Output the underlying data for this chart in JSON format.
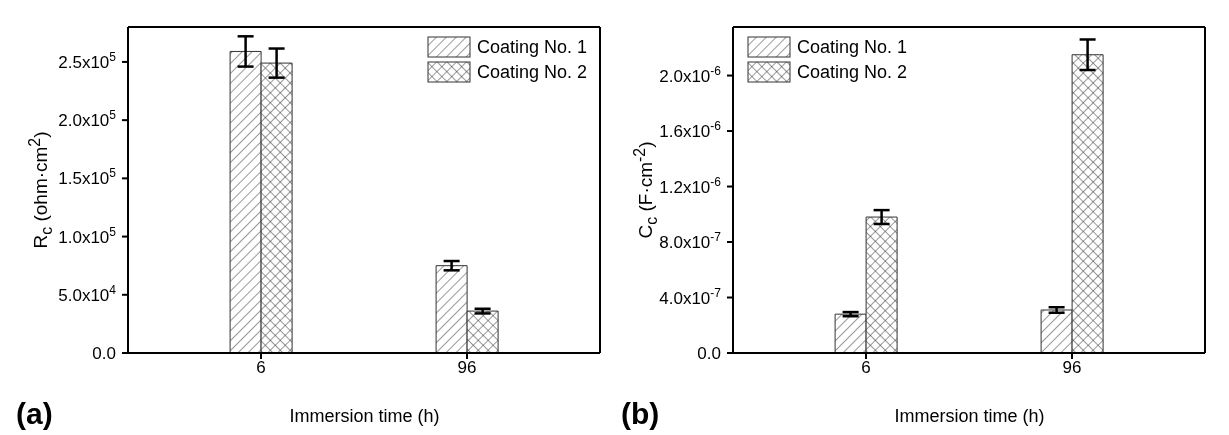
{
  "chart_data": [
    {
      "type": "bar",
      "categories": [
        "6",
        "96"
      ],
      "xlabel": "Immersion time (h)",
      "ylabel": "R$_{c}$ (ohm·cm$^{2}$)",
      "ylim": [
        0,
        280000
      ],
      "yticks": [
        {
          "value": 0,
          "label": "0.0"
        },
        {
          "value": 50000,
          "label": "5.0x10$^{4}$"
        },
        {
          "value": 100000,
          "label": "1.0x10$^{5}$"
        },
        {
          "value": 150000,
          "label": "1.5x10$^{5}$"
        },
        {
          "value": 200000,
          "label": "2.0x10$^{5}$"
        },
        {
          "value": 250000,
          "label": "2.5x10$^{5}$"
        }
      ],
      "series": [
        {
          "name": "Coating No. 1",
          "color": "#333333",
          "values": [
            259000,
            75000
          ],
          "errors": [
            13000,
            4000
          ]
        },
        {
          "name": "Coating No. 2",
          "color": "#333333",
          "values": [
            249000,
            36000
          ],
          "errors": [
            12500,
            2000
          ]
        }
      ],
      "legend": "top right",
      "grid": false,
      "annotations": [
        "(a)"
      ]
    },
    {
      "type": "bar",
      "categories": [
        "6",
        "96"
      ],
      "xlabel": "Immersion time (h)",
      "ylabel": "C$_{c}$ (F·cm$^{-2}$)",
      "ylim": [
        0,
        2.35e-06
      ],
      "yticks": [
        {
          "value": 0,
          "label": "0.0"
        },
        {
          "value": 4e-07,
          "label": "4.0x10$^{-7}$"
        },
        {
          "value": 8e-07,
          "label": "8.0x10$^{-7}$"
        },
        {
          "value": 1.2e-06,
          "label": "1.2x10$^{-6}$"
        },
        {
          "value": 1.6e-06,
          "label": "1.6x10$^{-6}$"
        },
        {
          "value": 2e-06,
          "label": "2.0x10$^{-6}$"
        }
      ],
      "series": [
        {
          "name": "Coating No. 1",
          "color": "#333333",
          "values": [
            2.8e-07,
            3.1e-07
          ],
          "errors": [
            1.5e-08,
            2e-08
          ]
        },
        {
          "name": "Coating No. 2",
          "color": "#333333",
          "values": [
            9.8e-07,
            2.15e-06
          ],
          "errors": [
            5e-08,
            1.1e-07
          ]
        }
      ],
      "legend": "top left",
      "grid": false,
      "annotations": [
        "(b)"
      ]
    }
  ]
}
